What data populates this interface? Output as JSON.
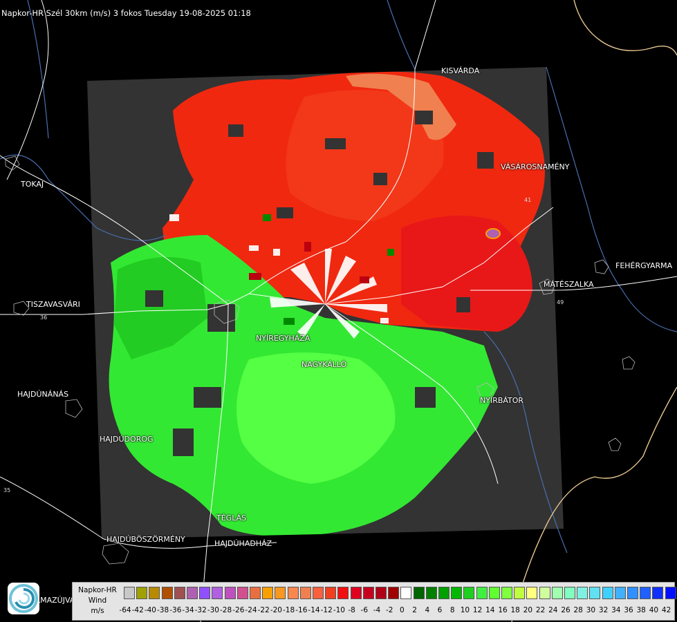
{
  "header": {
    "title": "Napkor-HR Szél 30km (m/s) 3 fokos Tuesday 19-08-2025 01:18"
  },
  "map": {
    "background_color": "#000000",
    "radar_area_color": "#333333",
    "border_color": "#e8c890",
    "river_color": "#4a6fb0",
    "road_color": "#ffffff",
    "city_labels": [
      {
        "id": "kisvarda",
        "name": "KISVÁRDA"
      },
      {
        "id": "tokaj",
        "name": "TOKAJ"
      },
      {
        "id": "vasarosnameny",
        "name": "VÁSÁROSNAMÉNY"
      },
      {
        "id": "fehergyarmat",
        "name": "FEHÉRGYARMA"
      },
      {
        "id": "mateszalka",
        "name": "MÁTÉSZALKA"
      },
      {
        "id": "tiszavasvari",
        "name": "TISZAVASVÁRI"
      },
      {
        "id": "nyiregyhaza",
        "name": "NYÍREGYHÁZA"
      },
      {
        "id": "nagykallo",
        "name": "NAGYKÁLLÓ"
      },
      {
        "id": "hajdunanas",
        "name": "HAJDÚNÁNÁS"
      },
      {
        "id": "nyirbator",
        "name": "NYÍRBÁTOR"
      },
      {
        "id": "hajdudorog",
        "name": "HAJDÚDOROG"
      },
      {
        "id": "teglas",
        "name": "TÉGLÁS"
      },
      {
        "id": "hajduboszormeny",
        "name": "HAJDÚBÖSZÖRMÉNY"
      },
      {
        "id": "hajduhadhaz",
        "name": "HAJDÚHADHÁZ"
      },
      {
        "id": "hajdusamson-partial",
        "name": "LMAZÚJVÁR"
      }
    ],
    "road_numbers": [
      "36",
      "35",
      "41",
      "49"
    ]
  },
  "legend": {
    "title_lines": [
      "Napkor-HR",
      "Wind",
      "m/s"
    ],
    "tick_labels": [
      "-64",
      "-42",
      "-40",
      "-38",
      "-36",
      "-34",
      "-32",
      "-30",
      "-28",
      "-26",
      "-24",
      "-22",
      "-20",
      "-18",
      "-16",
      "-14",
      "-12",
      "-10",
      "-8",
      "-6",
      "-4",
      "-2",
      "0",
      "2",
      "4",
      "6",
      "8",
      "10",
      "12",
      "14",
      "16",
      "18",
      "20",
      "22",
      "24",
      "26",
      "28",
      "30",
      "32",
      "34",
      "36",
      "38",
      "40",
      "42"
    ],
    "colors": [
      "#c8c8c8",
      "#a0a000",
      "#b88a00",
      "#b05000",
      "#a05050",
      "#b060b0",
      "#9050ff",
      "#b060e0",
      "#c050c0",
      "#d05090",
      "#e87040",
      "#f8a000",
      "#f89820",
      "#f88850",
      "#f08050",
      "#f86040",
      "#f04020",
      "#f01010",
      "#e00020",
      "#c80020",
      "#b00018",
      "#a00000",
      "#ffffff",
      "#006400",
      "#008000",
      "#00a000",
      "#00b800",
      "#20d020",
      "#40f040",
      "#60ff30",
      "#80ff40",
      "#c0ff40",
      "#ffff80",
      "#d0ffa0",
      "#a0ffb0",
      "#80ffc0",
      "#80f0e0",
      "#60e0f0",
      "#40d0ff",
      "#40b0ff",
      "#3090ff",
      "#2060ff",
      "#1030ff",
      "#0010ff"
    ]
  }
}
